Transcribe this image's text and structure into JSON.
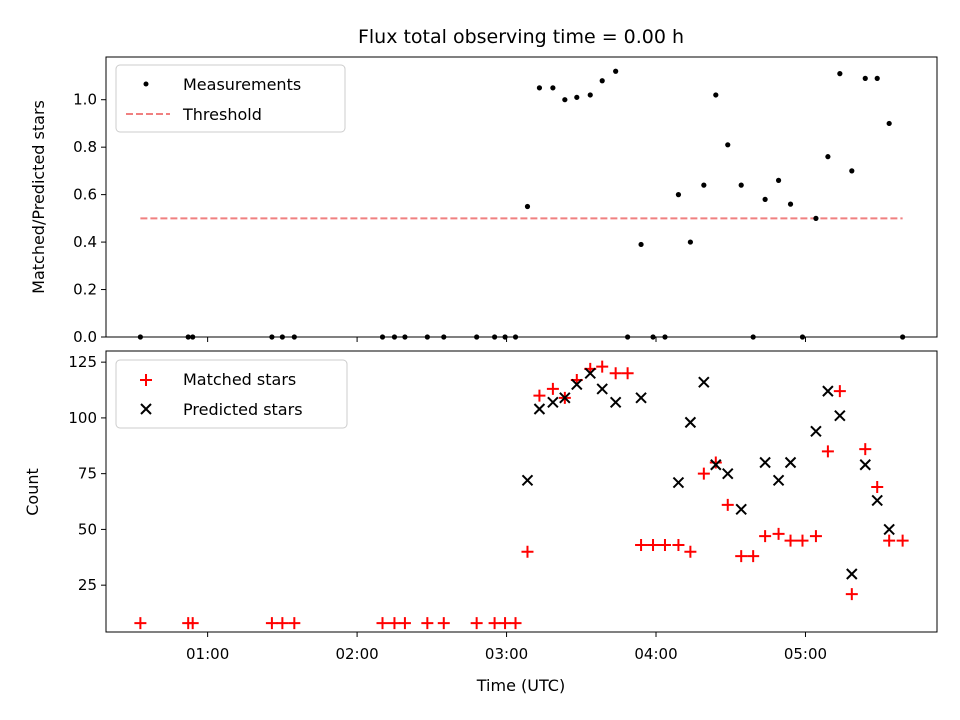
{
  "chart_data": [
    {
      "type": "scatter",
      "title": "Flux total observing time = 0.00 h",
      "ylabel": "Matched/Predicted stars",
      "xlabel": "",
      "ylim": [
        0,
        1.18
      ],
      "xlim": [
        0.32,
        5.88
      ],
      "yticks": [
        "0.0",
        "0.2",
        "0.4",
        "0.6",
        "0.8",
        "1.0"
      ],
      "ytick_values": [
        0,
        0.2,
        0.4,
        0.6,
        0.8,
        1.0
      ],
      "xtick_values": [
        1,
        2,
        3,
        4,
        5
      ],
      "legend": {
        "position": "upper-left",
        "entries": [
          "Measurements",
          "Threshold"
        ]
      },
      "colors": {
        "measurements": "#000000",
        "threshold": "#f08080"
      },
      "threshold": {
        "name": "Threshold",
        "y": 0.5,
        "x_start": 0.55,
        "x_end": 5.65
      },
      "series": [
        {
          "name": "Measurements",
          "x": [
            0.55,
            0.87,
            0.9,
            1.43,
            1.5,
            1.58,
            2.17,
            2.25,
            2.32,
            2.47,
            2.58,
            2.8,
            2.92,
            2.99,
            3.06,
            3.14,
            3.22,
            3.31,
            3.39,
            3.47,
            3.56,
            3.64,
            3.73,
            3.81,
            3.9,
            3.98,
            4.06,
            4.15,
            4.23,
            4.32,
            4.4,
            4.48,
            4.57,
            4.65,
            4.73,
            4.82,
            4.9,
            4.98,
            5.07,
            5.15,
            5.23,
            5.31,
            5.4,
            5.48,
            5.56,
            5.65
          ],
          "y": [
            0,
            0,
            0,
            0,
            0,
            0,
            0,
            0,
            0,
            0,
            0,
            0,
            0,
            0,
            0,
            0.55,
            1.05,
            1.05,
            1.0,
            1.01,
            1.02,
            1.08,
            1.12,
            0,
            0.39,
            0,
            0,
            0.6,
            0.4,
            0.64,
            1.02,
            0.81,
            0.64,
            0,
            0.58,
            0.66,
            0.56,
            0,
            0.5,
            0.76,
            1.11,
            0.7,
            1.09,
            1.09,
            0.9,
            0
          ]
        }
      ]
    },
    {
      "type": "scatter",
      "title": "",
      "ylabel": "Count",
      "xlabel": "Time (UTC)",
      "ylim": [
        4,
        130
      ],
      "xlim": [
        0.32,
        5.88
      ],
      "yticks": [
        "25",
        "50",
        "75",
        "100",
        "125"
      ],
      "ytick_values": [
        25,
        50,
        75,
        100,
        125
      ],
      "xticks": [
        "01:00",
        "02:00",
        "03:00",
        "04:00",
        "05:00"
      ],
      "xtick_values": [
        1,
        2,
        3,
        4,
        5
      ],
      "legend": {
        "position": "upper-left",
        "entries": [
          "Matched stars",
          "Predicted stars"
        ]
      },
      "colors": {
        "matched": "#ff0000",
        "predicted": "#000000"
      },
      "series": [
        {
          "name": "Matched stars",
          "marker": "plus",
          "x": [
            0.55,
            0.87,
            0.9,
            1.43,
            1.5,
            1.58,
            2.17,
            2.25,
            2.32,
            2.47,
            2.58,
            2.8,
            2.92,
            2.99,
            3.06,
            3.14,
            3.22,
            3.31,
            3.39,
            3.47,
            3.56,
            3.64,
            3.73,
            3.81,
            3.9,
            3.98,
            4.06,
            4.15,
            4.23,
            4.32,
            4.4,
            4.48,
            4.57,
            4.65,
            4.73,
            4.82,
            4.9,
            4.98,
            5.07,
            5.15,
            5.23,
            5.31,
            5.4,
            5.48,
            5.56,
            5.65
          ],
          "y": [
            8,
            8,
            8,
            8,
            8,
            8,
            8,
            8,
            8,
            8,
            8,
            8,
            8,
            8,
            8,
            40,
            110,
            113,
            109,
            117,
            122,
            123,
            120,
            120,
            43,
            43,
            43,
            43,
            40,
            75,
            80,
            61,
            38,
            38,
            47,
            48,
            45,
            45,
            47,
            85,
            112,
            21,
            86,
            69,
            45,
            45
          ]
        },
        {
          "name": "Predicted stars",
          "marker": "x",
          "x": [
            3.14,
            3.22,
            3.31,
            3.39,
            3.47,
            3.56,
            3.64,
            3.73,
            3.9,
            4.15,
            4.23,
            4.32,
            4.4,
            4.48,
            4.57,
            4.73,
            4.82,
            4.9,
            5.07,
            5.15,
            5.23,
            5.31,
            5.4,
            5.48,
            5.56
          ],
          "y": [
            72,
            104,
            107,
            109,
            115,
            120,
            113,
            107,
            109,
            71,
            98,
            116,
            79,
            75,
            59,
            80,
            72,
            80,
            94,
            112,
            101,
            30,
            79,
            63,
            50
          ]
        }
      ]
    }
  ]
}
